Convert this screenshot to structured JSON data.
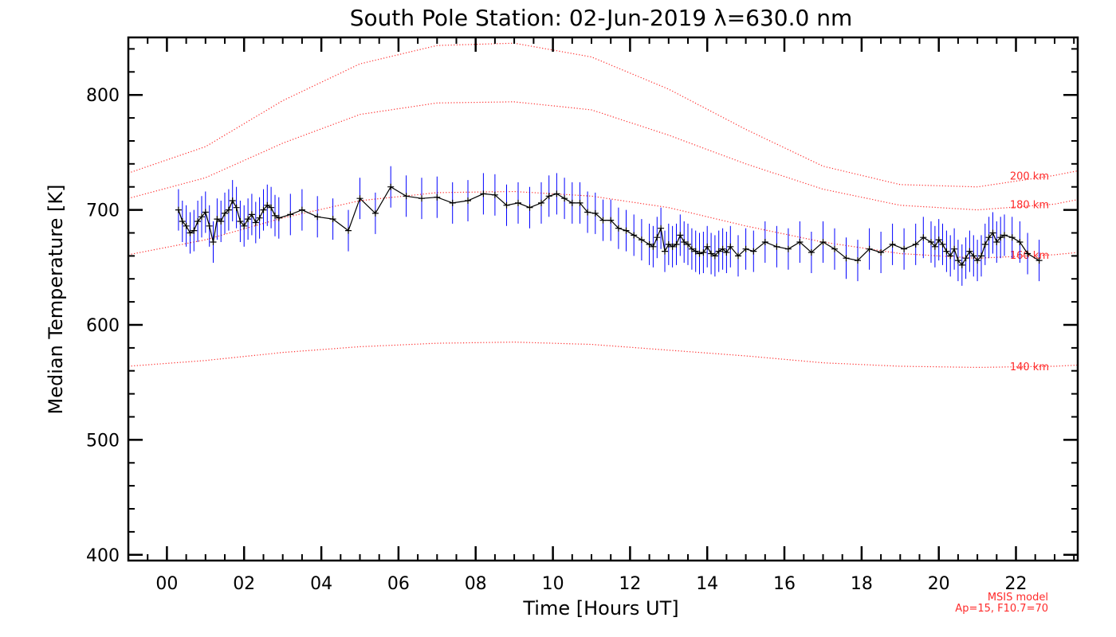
{
  "chart_data": {
    "type": "line",
    "title": "South Pole Station: 02-Jun-2019 λ=630.0 nm",
    "xlabel": "Time [Hours UT]",
    "ylabel": "Median Temperature [K]",
    "xlim": [
      -1.0,
      23.6
    ],
    "ylim": [
      395,
      850
    ],
    "x_ticks": [
      0,
      2,
      4,
      6,
      8,
      10,
      12,
      14,
      16,
      18,
      20,
      22
    ],
    "x_tick_labels": [
      "00",
      "02",
      "04",
      "06",
      "08",
      "10",
      "12",
      "14",
      "16",
      "18",
      "20",
      "22"
    ],
    "y_ticks": [
      400,
      500,
      600,
      700,
      800
    ],
    "y_tick_labels": [
      "400",
      "500",
      "600",
      "700",
      "800"
    ],
    "x_minor_step": 0.5,
    "y_minor_step": 20,
    "colors": {
      "data_line": "#000000",
      "error_bars": "#0000ff",
      "model": "#ff2a2a",
      "axes": "#000000"
    },
    "measurement": {
      "name": "Median Temperature",
      "points": [
        [
          0.3,
          700
        ],
        [
          0.4,
          690
        ],
        [
          0.5,
          686
        ],
        [
          0.6,
          680
        ],
        [
          0.7,
          682
        ],
        [
          0.8,
          690
        ],
        [
          0.9,
          694
        ],
        [
          1.0,
          698
        ],
        [
          1.1,
          686
        ],
        [
          1.2,
          672
        ],
        [
          1.3,
          692
        ],
        [
          1.4,
          690
        ],
        [
          1.5,
          697
        ],
        [
          1.6,
          700
        ],
        [
          1.7,
          708
        ],
        [
          1.8,
          702
        ],
        [
          1.9,
          690
        ],
        [
          2.0,
          686
        ],
        [
          2.1,
          692
        ],
        [
          2.2,
          696
        ],
        [
          2.3,
          689
        ],
        [
          2.4,
          693
        ],
        [
          2.5,
          700
        ],
        [
          2.6,
          704
        ],
        [
          2.7,
          702
        ],
        [
          2.8,
          695
        ],
        [
          2.9,
          693
        ],
        [
          3.2,
          696
        ],
        [
          3.5,
          700
        ],
        [
          3.9,
          694
        ],
        [
          4.3,
          692
        ],
        [
          4.7,
          682
        ],
        [
          5.0,
          710
        ],
        [
          5.4,
          697
        ],
        [
          5.8,
          720
        ],
        [
          6.2,
          712
        ],
        [
          6.6,
          710
        ],
        [
          7.0,
          711
        ],
        [
          7.4,
          706
        ],
        [
          7.8,
          708
        ],
        [
          8.2,
          714
        ],
        [
          8.5,
          713
        ],
        [
          8.8,
          704
        ],
        [
          9.1,
          706
        ],
        [
          9.4,
          702
        ],
        [
          9.7,
          706
        ],
        [
          9.9,
          712
        ],
        [
          10.1,
          714
        ],
        [
          10.3,
          710
        ],
        [
          10.5,
          706
        ],
        [
          10.7,
          706
        ],
        [
          10.9,
          698
        ],
        [
          11.1,
          697
        ],
        [
          11.3,
          691
        ],
        [
          11.5,
          691
        ],
        [
          11.7,
          684
        ],
        [
          11.9,
          682
        ],
        [
          12.1,
          678
        ],
        [
          12.3,
          674
        ],
        [
          12.5,
          670
        ],
        [
          12.6,
          668
        ],
        [
          12.7,
          676
        ],
        [
          12.8,
          684
        ],
        [
          12.9,
          664
        ],
        [
          13.0,
          670
        ],
        [
          13.1,
          668
        ],
        [
          13.2,
          670
        ],
        [
          13.3,
          678
        ],
        [
          13.4,
          672
        ],
        [
          13.5,
          670
        ],
        [
          13.6,
          666
        ],
        [
          13.7,
          664
        ],
        [
          13.8,
          662
        ],
        [
          13.9,
          663
        ],
        [
          14.0,
          668
        ],
        [
          14.1,
          662
        ],
        [
          14.2,
          660
        ],
        [
          14.3,
          664
        ],
        [
          14.4,
          666
        ],
        [
          14.5,
          663
        ],
        [
          14.6,
          668
        ],
        [
          14.8,
          660
        ],
        [
          15.0,
          666
        ],
        [
          15.2,
          664
        ],
        [
          15.5,
          672
        ],
        [
          15.8,
          668
        ],
        [
          16.1,
          666
        ],
        [
          16.4,
          672
        ],
        [
          16.7,
          663
        ],
        [
          17.0,
          672
        ],
        [
          17.3,
          666
        ],
        [
          17.6,
          658
        ],
        [
          17.9,
          656
        ],
        [
          18.2,
          666
        ],
        [
          18.5,
          663
        ],
        [
          18.8,
          670
        ],
        [
          19.1,
          666
        ],
        [
          19.4,
          670
        ],
        [
          19.6,
          676
        ],
        [
          19.8,
          672
        ],
        [
          19.9,
          668
        ],
        [
          20.0,
          674
        ],
        [
          20.1,
          670
        ],
        [
          20.2,
          664
        ],
        [
          20.3,
          660
        ],
        [
          20.4,
          666
        ],
        [
          20.5,
          656
        ],
        [
          20.6,
          652
        ],
        [
          20.7,
          658
        ],
        [
          20.8,
          664
        ],
        [
          20.9,
          660
        ],
        [
          21.0,
          656
        ],
        [
          21.1,
          660
        ],
        [
          21.2,
          670
        ],
        [
          21.3,
          676
        ],
        [
          21.4,
          680
        ],
        [
          21.5,
          672
        ],
        [
          21.6,
          676
        ],
        [
          21.7,
          678
        ],
        [
          21.9,
          676
        ],
        [
          22.1,
          672
        ],
        [
          22.3,
          662
        ],
        [
          22.6,
          656
        ]
      ],
      "error_half_width": 18
    },
    "model": {
      "name": "MSIS model",
      "params": "Ap=15, F10.7=70",
      "curves": [
        {
          "label": "200 km",
          "values": [
            [
              -1,
              732
            ],
            [
              1,
              755
            ],
            [
              3,
              795
            ],
            [
              5,
              827
            ],
            [
              7,
              843
            ],
            [
              9,
              845
            ],
            [
              11,
              833
            ],
            [
              13,
              805
            ],
            [
              15,
              770
            ],
            [
              17,
              738
            ],
            [
              19,
              722
            ],
            [
              21,
              720
            ],
            [
              23,
              730
            ],
            [
              23.6,
              734
            ]
          ]
        },
        {
          "label": "180 km",
          "values": [
            [
              -1,
              710
            ],
            [
              1,
              728
            ],
            [
              3,
              758
            ],
            [
              5,
              783
            ],
            [
              7,
              793
            ],
            [
              9,
              794
            ],
            [
              11,
              787
            ],
            [
              13,
              765
            ],
            [
              15,
              740
            ],
            [
              17,
              718
            ],
            [
              19,
              704
            ],
            [
              21,
              700
            ],
            [
              23,
              705
            ],
            [
              23.6,
              709
            ]
          ]
        },
        {
          "label": "160 km",
          "values": [
            [
              -1,
              661
            ],
            [
              1,
              674
            ],
            [
              3,
              693
            ],
            [
              5,
              708
            ],
            [
              7,
              715
            ],
            [
              9,
              716
            ],
            [
              11,
              712
            ],
            [
              13,
              702
            ],
            [
              15,
              686
            ],
            [
              17,
              672
            ],
            [
              19,
              662
            ],
            [
              21,
              658
            ],
            [
              23,
              661
            ],
            [
              23.6,
              663
            ]
          ]
        },
        {
          "label": "140 km",
          "values": [
            [
              -1,
              564
            ],
            [
              1,
              569
            ],
            [
              3,
              576
            ],
            [
              5,
              581
            ],
            [
              7,
              584
            ],
            [
              9,
              585
            ],
            [
              11,
              583
            ],
            [
              13,
              578
            ],
            [
              15,
              573
            ],
            [
              17,
              567
            ],
            [
              19,
              564
            ],
            [
              21,
              563
            ],
            [
              23,
              564
            ],
            [
              23.6,
              565
            ]
          ]
        }
      ]
    }
  }
}
